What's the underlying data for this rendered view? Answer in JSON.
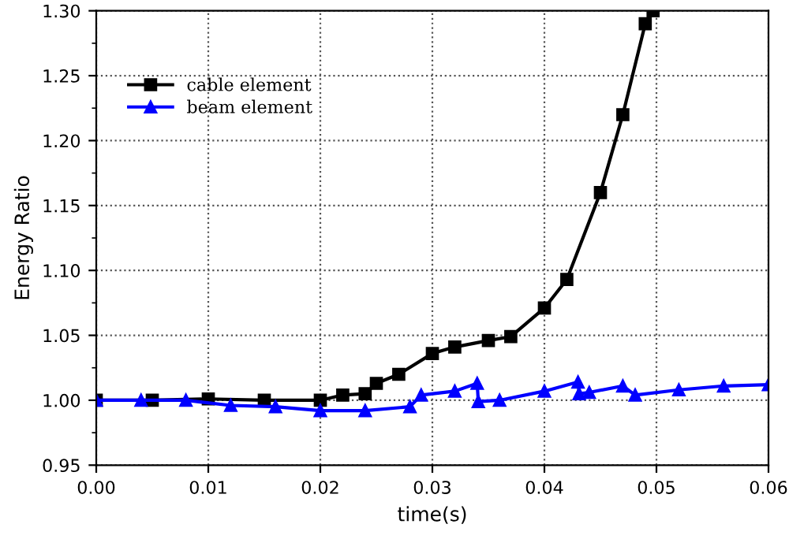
{
  "chart_data": {
    "type": "line",
    "xlabel": "time(s)",
    "ylabel": "Energy Ratio",
    "xlim": [
      0,
      0.06
    ],
    "ylim": [
      0.95,
      1.3
    ],
    "xticks": [
      {
        "value": 0,
        "label": "0.00"
      },
      {
        "value": 0.01,
        "label": "0.01"
      },
      {
        "value": 0.02,
        "label": "0.02"
      },
      {
        "value": 0.03,
        "label": "0.03"
      },
      {
        "value": 0.04,
        "label": "0.04"
      },
      {
        "value": 0.05,
        "label": "0.05"
      },
      {
        "value": 0.06,
        "label": "0.06"
      }
    ],
    "yticks": [
      {
        "value": 0.95,
        "label": "0.95"
      },
      {
        "value": 1.0,
        "label": "1.00"
      },
      {
        "value": 1.05,
        "label": "1.05"
      },
      {
        "value": 1.1,
        "label": "1.10"
      },
      {
        "value": 1.15,
        "label": "1.15"
      },
      {
        "value": 1.2,
        "label": "1.20"
      },
      {
        "value": 1.25,
        "label": "1.25"
      },
      {
        "value": 1.3,
        "label": "1.30"
      }
    ],
    "grid": true,
    "legend": "top left",
    "series": [
      {
        "name": "cable element",
        "color": "#000000",
        "marker": "square",
        "x": [
          0,
          0.005,
          0.01,
          0.015,
          0.02,
          0.022,
          0.024,
          0.025,
          0.027,
          0.03,
          0.032,
          0.035,
          0.037,
          0.04,
          0.042,
          0.045,
          0.047,
          0.049,
          0.0497
        ],
        "values": [
          1.0,
          1.0,
          1.001,
          1.0,
          1.0,
          1.004,
          1.005,
          1.013,
          1.02,
          1.036,
          1.041,
          1.046,
          1.049,
          1.071,
          1.093,
          1.16,
          1.22,
          1.29,
          1.3
        ]
      },
      {
        "name": "beam element",
        "color": "#0000ff",
        "marker": "triangle",
        "x": [
          0,
          0.004,
          0.008,
          0.012,
          0.016,
          0.02,
          0.024,
          0.028,
          0.029,
          0.032,
          0.034,
          0.0341,
          0.036,
          0.04,
          0.043,
          0.0431,
          0.044,
          0.047,
          0.0481,
          0.052,
          0.056,
          0.06
        ],
        "values": [
          1.0,
          1.0,
          1.0,
          0.996,
          0.995,
          0.992,
          0.992,
          0.995,
          1.004,
          1.007,
          1.013,
          0.999,
          1.0,
          1.007,
          1.014,
          1.005,
          1.006,
          1.011,
          1.004,
          1.008,
          1.011,
          1.012
        ]
      }
    ]
  }
}
